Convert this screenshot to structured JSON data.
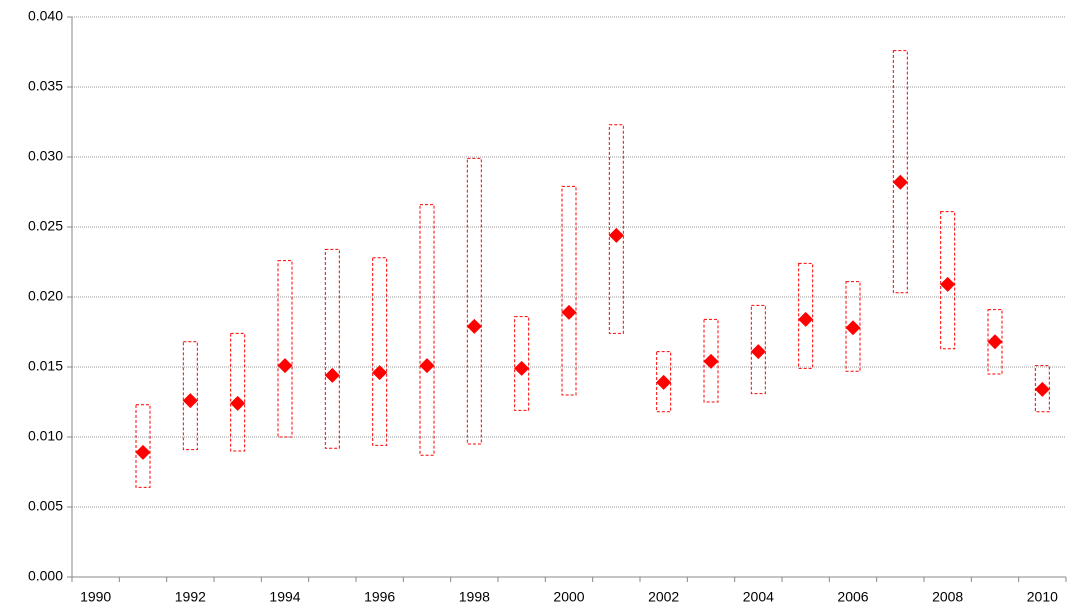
{
  "chart_data": {
    "type": "range-dot",
    "categories": [
      "1990",
      null,
      "1992",
      null,
      "1994",
      null,
      "1996",
      null,
      "1998",
      null,
      "2000",
      null,
      "2002",
      null,
      "2004",
      null,
      "2006",
      null,
      "2008",
      null,
      "2010"
    ],
    "values": [
      null,
      0.0089,
      0.0126,
      0.0124,
      0.0151,
      0.0144,
      0.0146,
      0.0151,
      0.0179,
      0.0149,
      0.0189,
      0.0244,
      0.0139,
      0.0154,
      0.0161,
      0.0184,
      0.0178,
      0.0282,
      0.0209,
      0.0168,
      0.0134
    ],
    "highs": [
      null,
      0.0123,
      0.0168,
      0.0174,
      0.0226,
      0.0234,
      0.0228,
      0.0266,
      0.0299,
      0.0186,
      0.0279,
      0.0323,
      0.0161,
      0.0184,
      0.0194,
      0.0224,
      0.0211,
      0.0376,
      0.0261,
      0.0191,
      0.0151
    ],
    "lows": [
      null,
      0.0064,
      0.0091,
      0.009,
      0.01,
      0.0092,
      0.0094,
      0.0087,
      0.0095,
      0.0119,
      0.013,
      0.0174,
      0.0118,
      0.0125,
      0.0131,
      0.0149,
      0.0147,
      0.0203,
      0.0163,
      0.0145,
      0.0118
    ],
    "color": "#ff0000",
    "ylim": [
      0,
      0.04
    ],
    "yticks": [
      {
        "value": 0,
        "label": "0.000"
      },
      0.005,
      {
        "value": 0.01,
        "label": "0.010"
      },
      0.015,
      {
        "value": 0.02,
        "label": "0.020"
      },
      0.025,
      {
        "value": 0.03,
        "label": "0.030"
      },
      0.035,
      {
        "value": 0.04,
        "label": "0.040"
      }
    ],
    "grid": true
  }
}
